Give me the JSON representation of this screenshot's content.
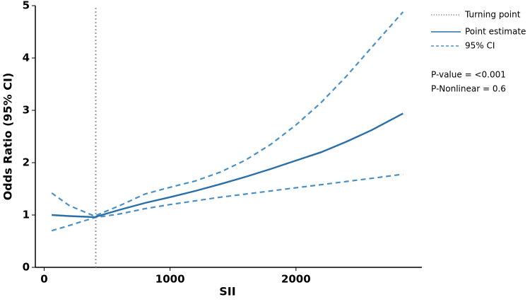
{
  "chart_data": {
    "type": "line",
    "x_label": "SII",
    "y_label": "Odds Ratio (95% CI)",
    "x": [
      60,
      200,
      400,
      600,
      800,
      1000,
      1200,
      1400,
      1600,
      1800,
      2000,
      2200,
      2400,
      2600,
      2850
    ],
    "series": [
      {
        "name": "Point estimate",
        "color": "#2a6fa8",
        "values": [
          1.0,
          0.98,
          0.96,
          1.1,
          1.23,
          1.34,
          1.46,
          1.59,
          1.73,
          1.88,
          2.04,
          2.2,
          2.4,
          2.62,
          2.94
        ]
      }
    ],
    "ci": {
      "name": "95% CI",
      "color": "#4a90c8",
      "lower": [
        0.7,
        0.8,
        0.95,
        1.02,
        1.12,
        1.2,
        1.27,
        1.34,
        1.4,
        1.46,
        1.52,
        1.58,
        1.64,
        1.7,
        1.78
      ],
      "upper": [
        1.42,
        1.18,
        0.98,
        1.18,
        1.4,
        1.53,
        1.65,
        1.82,
        2.05,
        2.35,
        2.72,
        3.15,
        3.65,
        4.2,
        4.88
      ]
    },
    "turning_point": {
      "name": "Turning point",
      "x": 410,
      "color": "#999999"
    },
    "annotations": [
      "P-value = <0.001",
      "P-Nonlinear = 0.6"
    ],
    "xlim": [
      -70,
      3000
    ],
    "ylim": [
      0,
      5
    ],
    "xticks": [
      0,
      1000,
      2000
    ],
    "yticks": [
      0,
      1,
      2,
      3,
      4,
      5
    ]
  }
}
